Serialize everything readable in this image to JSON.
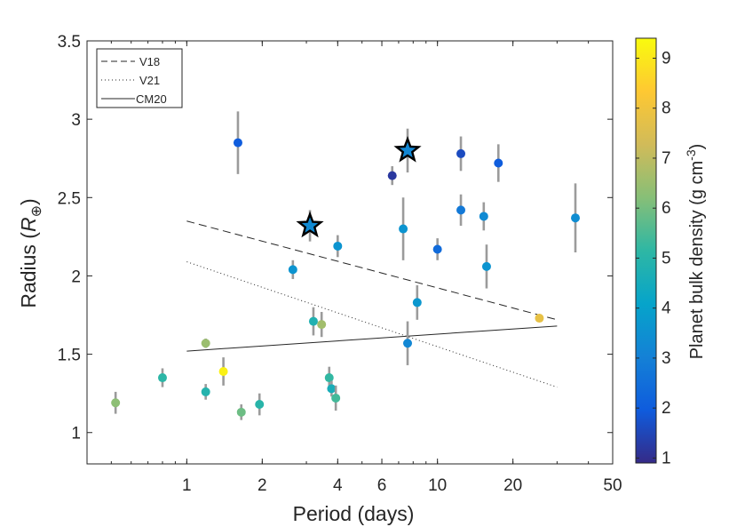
{
  "chart_data": {
    "type": "scatter",
    "xlabel": "Period (days)",
    "ylabel_main": "Radius (",
    "ylabel_R": "R",
    "ylabel_sub": "⊕",
    "ylabel_close": ")",
    "xscale": "log",
    "xlim": [
      0.4,
      50
    ],
    "ylim": [
      0.8,
      3.5
    ],
    "xticks": [
      1,
      2,
      4,
      6,
      10,
      20,
      50
    ],
    "xtick_labels": [
      "1",
      "2",
      "4",
      "6",
      "10",
      "20",
      "50"
    ],
    "yticks": [
      1,
      1.5,
      2,
      2.5,
      3,
      3.5
    ],
    "ytick_labels": [
      "1",
      "1.5",
      "2",
      "2.5",
      "3",
      "3.5"
    ],
    "colorbar": {
      "label_main": "Planet bulk density (g cm",
      "label_sup": "-3",
      "label_close": ")",
      "range": [
        0.9,
        9.4
      ],
      "ticks": [
        1,
        2,
        3,
        4,
        5,
        6,
        7,
        8,
        9
      ],
      "tick_labels": [
        "1",
        "2",
        "3",
        "4",
        "5",
        "6",
        "7",
        "8",
        "9"
      ],
      "colormap": "parula"
    },
    "legend": {
      "placement": "top-left",
      "entries": [
        {
          "name": "V18",
          "style": "dashed"
        },
        {
          "name": "V21",
          "style": "dotted"
        },
        {
          "name": "CM20",
          "style": "solid"
        }
      ]
    },
    "series": [
      {
        "name": "V18",
        "style": "dashed",
        "x": [
          1,
          30
        ],
        "y": [
          2.35,
          1.72
        ]
      },
      {
        "name": "V21",
        "style": "dotted",
        "x": [
          1,
          30
        ],
        "y": [
          2.09,
          1.29
        ]
      },
      {
        "name": "CM20",
        "style": "solid",
        "x": [
          1,
          30
        ],
        "y": [
          1.52,
          1.68
        ]
      }
    ],
    "points": [
      {
        "x": 0.52,
        "y": 1.19,
        "err": 0.07,
        "density": 6.3
      },
      {
        "x": 0.8,
        "y": 1.35,
        "err": 0.06,
        "density": 5.1
      },
      {
        "x": 1.19,
        "y": 1.57,
        "err": 0.03,
        "density": 6.5
      },
      {
        "x": 1.19,
        "y": 1.26,
        "err": 0.05,
        "density": 4.9
      },
      {
        "x": 1.4,
        "y": 1.39,
        "err": 0.09,
        "density": 9.2
      },
      {
        "x": 1.6,
        "y": 2.85,
        "err": 0.2,
        "density": 2.0
      },
      {
        "x": 1.65,
        "y": 1.13,
        "err": 0.05,
        "density": 5.9
      },
      {
        "x": 1.95,
        "y": 1.18,
        "err": 0.07,
        "density": 5.0
      },
      {
        "x": 2.65,
        "y": 2.04,
        "err": 0.06,
        "density": 3.6
      },
      {
        "x": 3.2,
        "y": 1.71,
        "err": 0.09,
        "density": 4.8
      },
      {
        "x": 3.45,
        "y": 1.69,
        "err": 0.08,
        "density": 6.6
      },
      {
        "x": 3.7,
        "y": 1.35,
        "err": 0.07,
        "density": 5.2
      },
      {
        "x": 3.78,
        "y": 1.28,
        "err": 0.05,
        "density": 4.6
      },
      {
        "x": 3.93,
        "y": 1.22,
        "err": 0.08,
        "density": 5.4
      },
      {
        "x": 4.0,
        "y": 2.19,
        "err": 0.07,
        "density": 3.6
      },
      {
        "x": 6.6,
        "y": 2.64,
        "err": 0.06,
        "density": 1.2
      },
      {
        "x": 7.3,
        "y": 2.3,
        "err": 0.2,
        "density": 3.6
      },
      {
        "x": 7.6,
        "y": 1.57,
        "err": 0.14,
        "density": 3.2
      },
      {
        "x": 8.3,
        "y": 1.83,
        "err": 0.11,
        "density": 3.7
      },
      {
        "x": 10.0,
        "y": 2.17,
        "err": 0.07,
        "density": 2.4
      },
      {
        "x": 12.4,
        "y": 2.42,
        "err": 0.1,
        "density": 2.8
      },
      {
        "x": 12.4,
        "y": 2.78,
        "err": 0.11,
        "density": 1.6
      },
      {
        "x": 15.3,
        "y": 2.38,
        "err": 0.09,
        "density": 3.3
      },
      {
        "x": 15.7,
        "y": 2.06,
        "err": 0.14,
        "density": 3.6
      },
      {
        "x": 17.5,
        "y": 2.72,
        "err": 0.12,
        "density": 2.0
      },
      {
        "x": 25.5,
        "y": 1.73,
        "err": 0.02,
        "density": 7.8
      },
      {
        "x": 35.5,
        "y": 2.37,
        "err": 0.22,
        "density": 3.4
      }
    ],
    "stars": [
      {
        "x": 3.1,
        "y": 2.32,
        "err": 0.1,
        "density": 3.3
      },
      {
        "x": 7.6,
        "y": 2.8,
        "err": 0.14,
        "density": 3.2
      }
    ]
  }
}
